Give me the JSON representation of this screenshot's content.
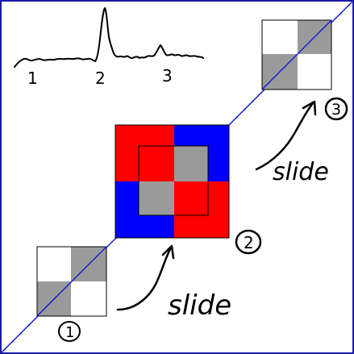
{
  "colors": {
    "border": "#1a1aa8",
    "diagonal": "#1a1ad8",
    "red": "#ff0000",
    "blue": "#0000ff",
    "gray": "#9a9a9a",
    "white": "#ffffff",
    "ink": "#000000"
  },
  "signal_plot": {
    "tick_labels": [
      "1",
      "2",
      "3"
    ]
  },
  "annotations": {
    "slide_lower": "slide",
    "slide_upper": "slide",
    "label_1": "1",
    "label_2": "2",
    "label_3": "3"
  }
}
